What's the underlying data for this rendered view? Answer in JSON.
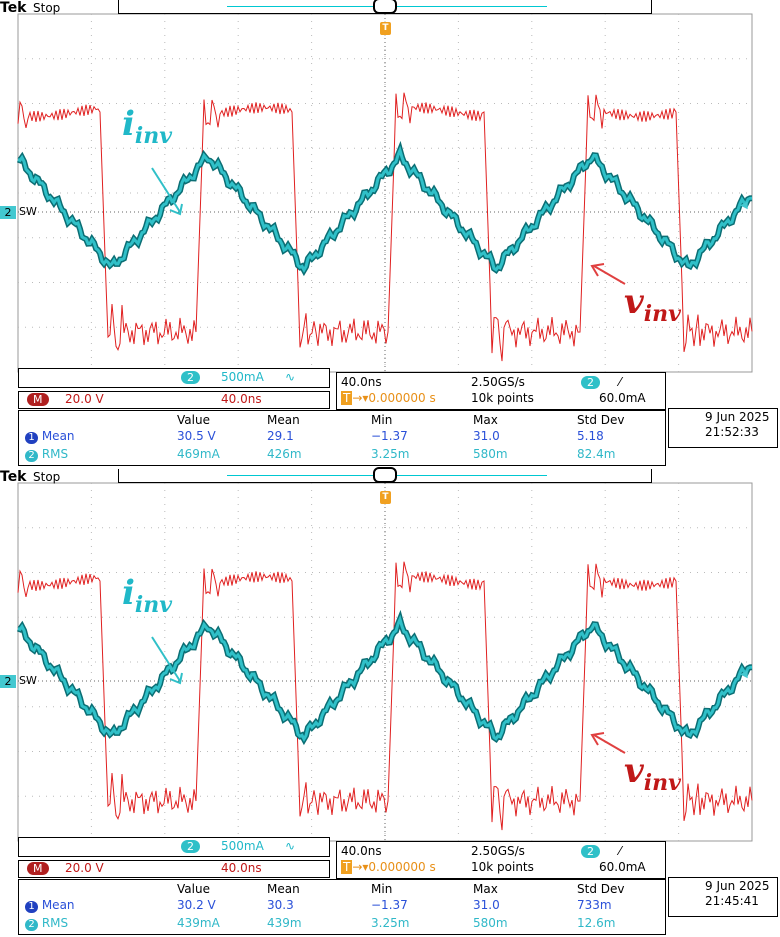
{
  "brand": "Tek",
  "state": "Stop",
  "trigger_marker": "T",
  "channel_marker": "2",
  "ground_label": "SW",
  "annotations": {
    "i_main": "i",
    "i_sub": "inv",
    "v_main": "v",
    "v_sub": "inv"
  },
  "colors": {
    "ch1": "#e02020",
    "ch2": "#1ca8b0",
    "grid": "#888888"
  },
  "panels": [
    {
      "ch2_scale": "500mA",
      "ch2_coupling": "∿",
      "math_label": "M",
      "math_scale": "20.0 V",
      "math_time": "40.0ns",
      "timebase": "40.0ns",
      "sample_rate": "2.50GS/s",
      "trigger_source": "2",
      "trigger_slope": "⁄",
      "trigger_pos": "0.000000 s",
      "record_len": "10k points",
      "trigger_level": "60.0mA",
      "date": "9 Jun  2025",
      "time": "21:52:33",
      "meas_headers": [
        "Value",
        "Mean",
        "Min",
        "Max",
        "Std Dev"
      ],
      "meas_rows": [
        {
          "ch": "1",
          "name": "Mean",
          "value": "30.5 V",
          "mean": "29.1",
          "min": "−1.37",
          "max": "31.0",
          "std": "5.18"
        },
        {
          "ch": "2",
          "name": "RMS",
          "value": "469mA",
          "mean": "426m",
          "min": "3.25m",
          "max": "580m",
          "std": "82.4m"
        }
      ]
    },
    {
      "ch2_scale": "500mA",
      "ch2_coupling": "∿",
      "math_label": "M",
      "math_scale": "20.0 V",
      "math_time": "40.0ns",
      "timebase": "40.0ns",
      "sample_rate": "2.50GS/s",
      "trigger_source": "2",
      "trigger_slope": "⁄",
      "trigger_pos": "0.000000 s",
      "record_len": "10k points",
      "trigger_level": "60.0mA",
      "date": "9 Jun  2025",
      "time": "21:45:41",
      "meas_headers": [
        "Value",
        "Mean",
        "Min",
        "Max",
        "Std Dev"
      ],
      "meas_rows": [
        {
          "ch": "1",
          "name": "Mean",
          "value": "30.2 V",
          "mean": "30.3",
          "min": "−1.37",
          "max": "31.0",
          "std": "733m"
        },
        {
          "ch": "2",
          "name": "RMS",
          "value": "439mA",
          "mean": "439m",
          "min": "3.25m",
          "max": "580m",
          "std": "12.6m"
        }
      ]
    }
  ]
}
